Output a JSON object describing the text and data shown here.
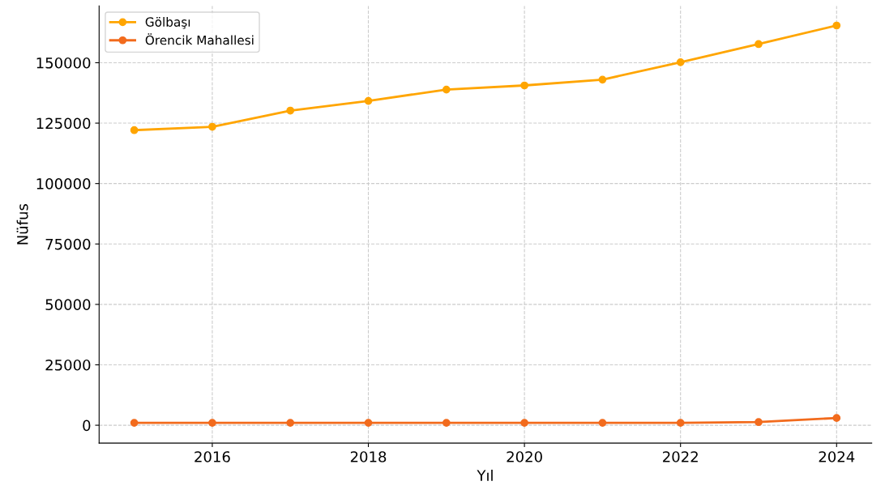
{
  "chart_data": {
    "type": "line",
    "xlabel": "Yıl",
    "ylabel": "Nüfus",
    "x": [
      2015,
      2016,
      2017,
      2018,
      2019,
      2020,
      2021,
      2022,
      2023,
      2024
    ],
    "series": [
      {
        "name": "Gölbaşı",
        "color": "#ffa500",
        "values": [
          122100,
          123500,
          130200,
          134200,
          138900,
          140600,
          143000,
          150200,
          157700,
          165400
        ]
      },
      {
        "name": "Örencik Mahallesi",
        "color": "#f26b1d",
        "values": [
          1000,
          1000,
          1000,
          1000,
          1000,
          1000,
          1000,
          1000,
          1300,
          3000
        ]
      }
    ],
    "xlim": [
      2014.55,
      2024.45
    ],
    "ylim": [
      -7400,
      173500
    ],
    "xticks": [
      2016,
      2018,
      2020,
      2022,
      2024
    ],
    "yticks": [
      0,
      25000,
      50000,
      75000,
      100000,
      125000,
      150000
    ],
    "grid": true,
    "legend": "top left",
    "marker": "circle",
    "line_style": "solid"
  }
}
